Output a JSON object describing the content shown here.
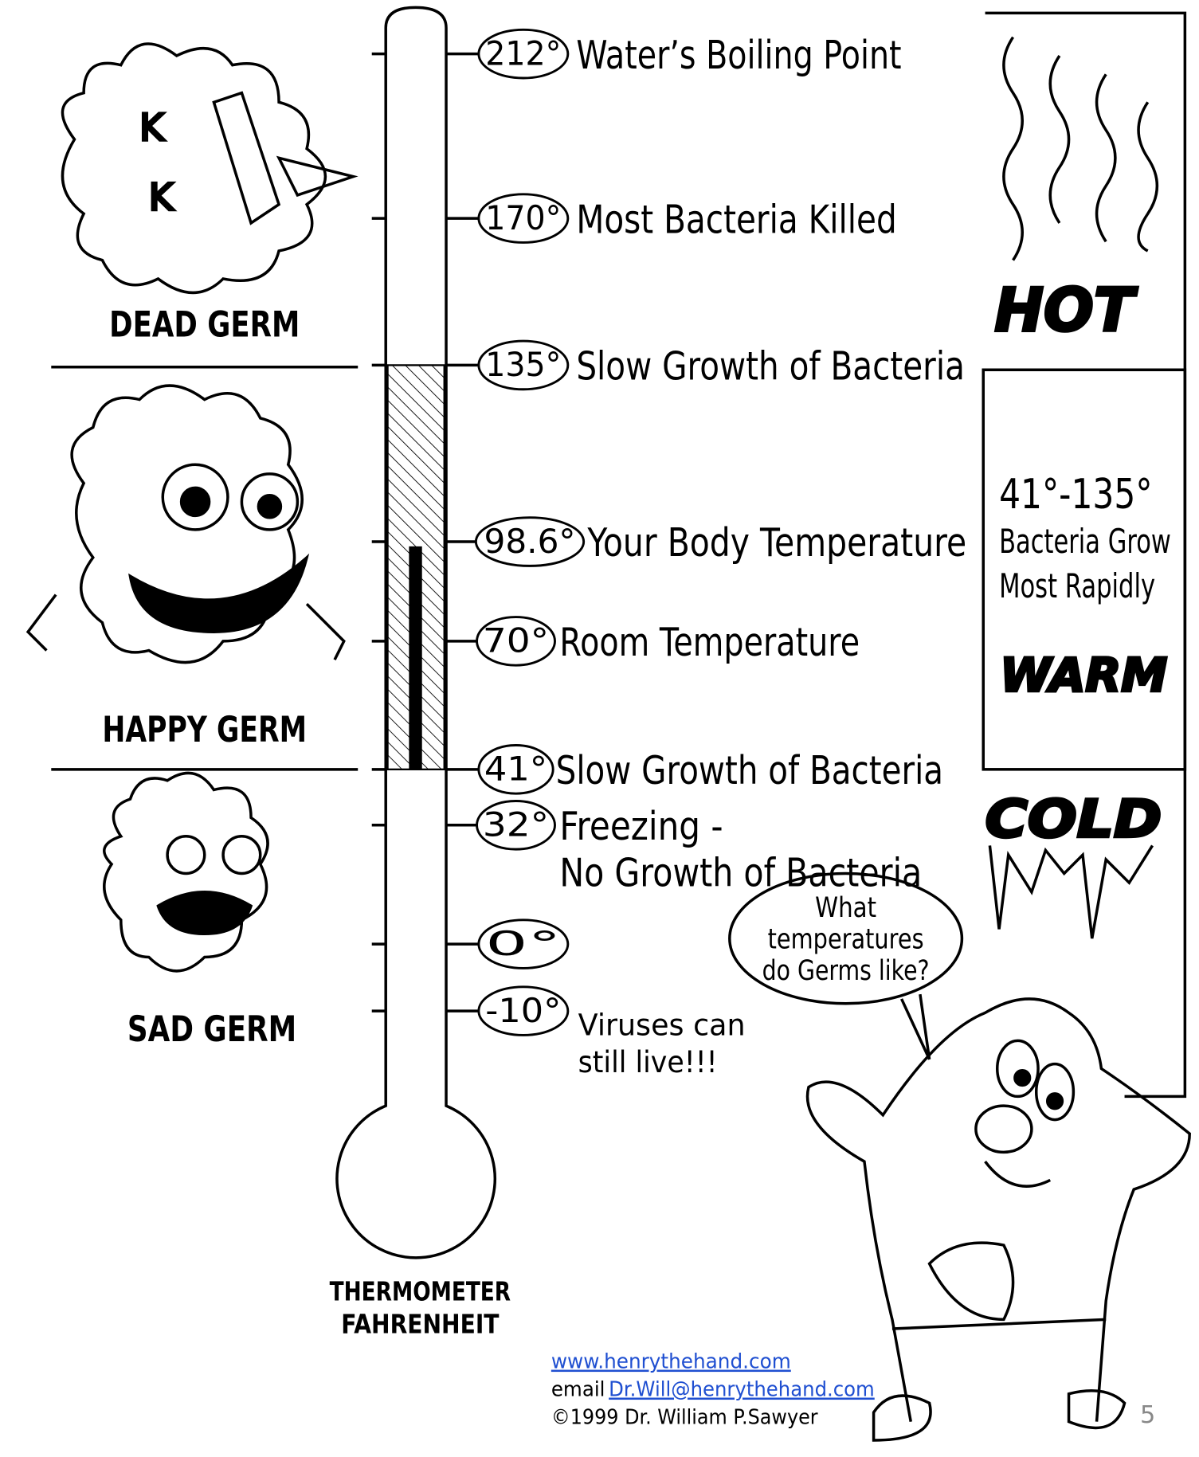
{
  "markers": [
    {
      "temp": "212°",
      "label": [
        "Water’s Boiling Point"
      ]
    },
    {
      "temp": "170°",
      "label": [
        "Most Bacteria Killed"
      ]
    },
    {
      "temp": "135°",
      "label": [
        "Slow Growth of Bacteria"
      ]
    },
    {
      "temp": "98.6°",
      "label": [
        "Your Body Temperature"
      ]
    },
    {
      "temp": "70°",
      "label": [
        "Room Temperature"
      ]
    },
    {
      "temp": "41°",
      "label": [
        "Slow Growth of Bacteria"
      ]
    },
    {
      "temp": "32°",
      "label": [
        "Freezing -",
        "No Growth of Bacteria"
      ]
    },
    {
      "temp": "0°",
      "label": []
    },
    {
      "temp": "-10°",
      "label": []
    }
  ],
  "virus_note": [
    "Viruses can",
    "still live!!!"
  ],
  "germs": [
    "DEAD GERM",
    "HAPPY GERM",
    "SAD GERM"
  ],
  "thermometer_caption": [
    "THERMOMETER",
    "FAHRENHEIT"
  ],
  "zones": {
    "hot": "HOT",
    "warm_range": "41°-135°",
    "warm_text": [
      "Bacteria Grow",
      "Most Rapidly"
    ],
    "warm": "WARM",
    "cold": "COLD"
  },
  "bubble": [
    "What",
    "temperatures",
    "do Germs like?"
  ],
  "footer": {
    "url": "www.henrythehand.com",
    "email_prefix": "email",
    "email": "Dr.Will@henrythehand.com",
    "copyright": "©1999 Dr. William P.Sawyer",
    "page": "5"
  }
}
